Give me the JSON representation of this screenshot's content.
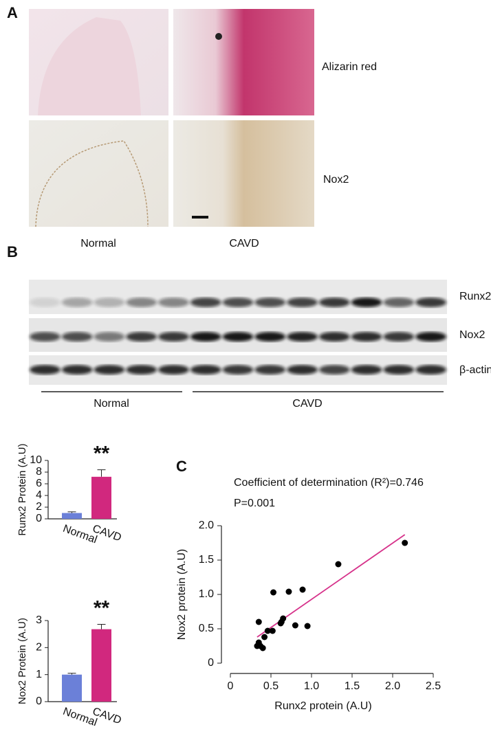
{
  "panels": {
    "a": {
      "label": "A",
      "rows": [
        "Alizarin red",
        "Nox2"
      ],
      "columns": [
        "Normal",
        "CAVD"
      ]
    },
    "b": {
      "label": "B",
      "bands": [
        "Runx2",
        "Nox2",
        "β-actin"
      ],
      "groups": [
        "Normal",
        "CAVD"
      ]
    },
    "c": {
      "label": "C"
    }
  },
  "chart_data": [
    {
      "type": "bar",
      "categories": [
        "Normal",
        "CAVD"
      ],
      "values": [
        1.0,
        7.2
      ],
      "errors": [
        0.2,
        1.2
      ],
      "colors": [
        "#6b80d8",
        "#d1287e"
      ],
      "ylabel": "Runx2 Protein (A.U)",
      "ylim": [
        0,
        10
      ],
      "yticks": [
        0,
        2,
        4,
        6,
        8,
        10
      ],
      "annotation": "**"
    },
    {
      "type": "bar",
      "categories": [
        "Normal",
        "CAVD"
      ],
      "values": [
        1.0,
        2.68
      ],
      "errors": [
        0.05,
        0.18
      ],
      "colors": [
        "#6b80d8",
        "#d1287e"
      ],
      "ylabel": "Nox2 Protein (A.U)",
      "ylim": [
        0,
        3
      ],
      "yticks": [
        0,
        1,
        2,
        3
      ],
      "annotation": "**"
    },
    {
      "type": "scatter",
      "annotations": [
        "Coefficient of determination (R²)=0.746",
        "P=0.001"
      ],
      "xlabel": "Runx2 protein (A.U)",
      "ylabel": "Nox2 protein (A.U)",
      "x": [
        2.15,
        1.33,
        0.53,
        0.72,
        0.89,
        0.35,
        0.65,
        0.63,
        0.62,
        0.8,
        0.95,
        0.46,
        0.52,
        0.42,
        0.35,
        0.33,
        0.37,
        0.4
      ],
      "y": [
        1.75,
        1.44,
        1.03,
        1.04,
        1.07,
        0.6,
        0.65,
        0.6,
        0.58,
        0.55,
        0.54,
        0.47,
        0.47,
        0.38,
        0.3,
        0.25,
        0.25,
        0.22
      ],
      "color": "#000000",
      "fit_line": {
        "x": [
          0.33,
          2.15
        ],
        "y": [
          0.38,
          1.87
        ],
        "color": "#d6318a"
      },
      "xlim": [
        0,
        2.5
      ],
      "xticks": [
        0,
        0.5,
        {
          "value": 1,
          "label": "1.0"
        },
        1.5,
        {
          "value": 2,
          "label": "2.0"
        },
        2.5
      ],
      "ylim": [
        0,
        2
      ],
      "yticks": [
        0,
        0.5,
        {
          "value": 1,
          "label": "1.0"
        },
        1.5,
        {
          "value": 2,
          "label": "2.0"
        }
      ]
    }
  ]
}
